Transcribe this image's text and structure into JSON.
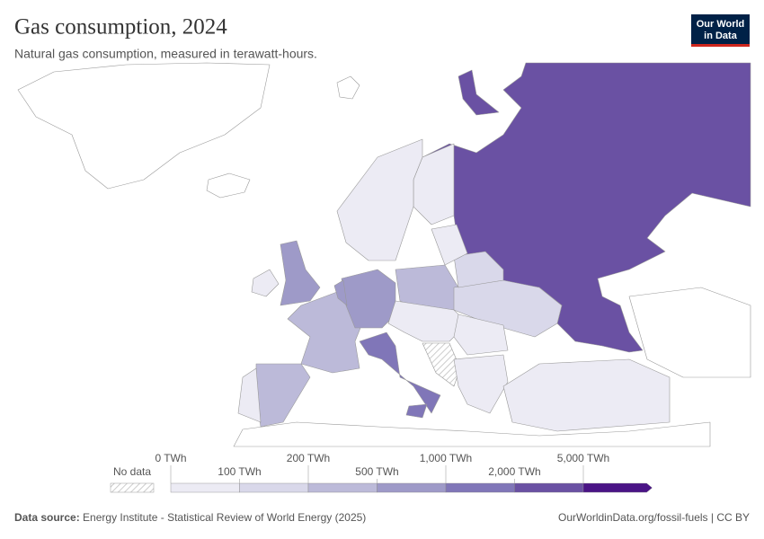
{
  "header": {
    "title": "Gas consumption, 2024",
    "subtitle": "Natural gas consumption, measured in terawatt-hours.",
    "logo": [
      "Our World",
      "in Data"
    ]
  },
  "legend": {
    "no_data": "No data",
    "labels": [
      "0 TWh",
      "100 TWh",
      "200 TWh",
      "500 TWh",
      "1,000 TWh",
      "2,000 TWh",
      "5,000 TWh"
    ],
    "colors": [
      "#ecebf4",
      "#d9d8ea",
      "#bcbad9",
      "#9e9ac8",
      "#8076b8",
      "#6a51a3",
      "#4a1486"
    ]
  },
  "footer": {
    "source_label": "Data source:",
    "source": "Energy Institute - Statistical Review of World Energy (2025)",
    "url": "OurWorldinData.org/fossil-fuels | CC BY"
  }
}
